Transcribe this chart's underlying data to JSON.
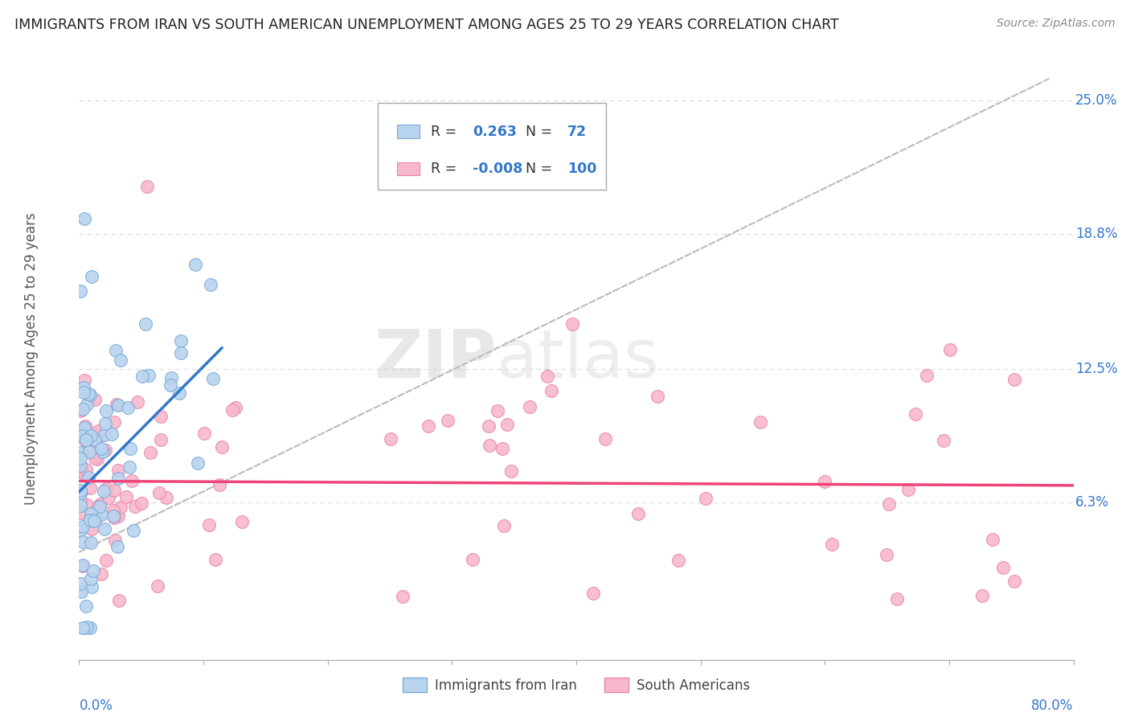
{
  "title": "IMMIGRANTS FROM IRAN VS SOUTH AMERICAN UNEMPLOYMENT AMONG AGES 25 TO 29 YEARS CORRELATION CHART",
  "source": "Source: ZipAtlas.com",
  "ylabel": "Unemployment Among Ages 25 to 29 years",
  "ytick_labels": [
    "6.3%",
    "12.5%",
    "18.8%",
    "25.0%"
  ],
  "ytick_values": [
    0.063,
    0.125,
    0.188,
    0.25
  ],
  "xlim": [
    0.0,
    0.8
  ],
  "ylim": [
    -0.01,
    0.27
  ],
  "series1_color": "#b8d4ee",
  "series1_edge": "#7aaad8",
  "series2_color": "#f8b8cc",
  "series2_edge": "#e888a8",
  "trendline1_color": "#3377cc",
  "trendline2_color": "#ee4477",
  "trendline_dash_color": "#bbbbbb",
  "watermark_color": "#dddddd",
  "background_color": "#ffffff",
  "grid_color": "#dddddd",
  "title_color": "#222222",
  "source_color": "#888888",
  "axis_label_color": "#3377cc",
  "ylabel_color": "#555555"
}
